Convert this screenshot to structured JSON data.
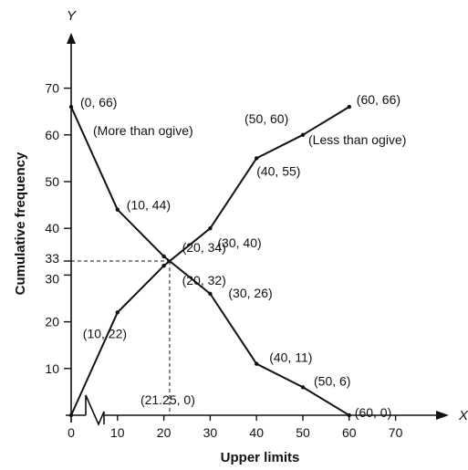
{
  "chart_data": {
    "type": "line",
    "xlabel": "Upper limits",
    "ylabel": "Cumulative frequency",
    "x_axis_name": "X",
    "y_axis_name": "Y",
    "xlim": [
      0,
      80
    ],
    "ylim": [
      0,
      78
    ],
    "x_ticks": [
      0,
      10,
      20,
      30,
      40,
      50,
      60,
      70
    ],
    "y_ticks": [
      10,
      20,
      30,
      33,
      40,
      50,
      60,
      70
    ],
    "grid": false,
    "series": [
      {
        "name": "More than ogive",
        "points": [
          {
            "x": 0,
            "y": 66,
            "label": "(0, 66)"
          },
          {
            "x": 10,
            "y": 44,
            "label": "(10, 44)"
          },
          {
            "x": 20,
            "y": 34,
            "label": "(20, 34)"
          },
          {
            "x": 30,
            "y": 26,
            "label": "(30, 26)"
          },
          {
            "x": 40,
            "y": 11,
            "label": "(40, 11)"
          },
          {
            "x": 50,
            "y": 6,
            "label": "(50, 6)"
          },
          {
            "x": 60,
            "y": 0,
            "label": "(60, 0)"
          }
        ]
      },
      {
        "name": "Less than ogive",
        "points": [
          {
            "x": 0,
            "y": 0,
            "label": ""
          },
          {
            "x": 10,
            "y": 22,
            "label": "(10, 22)"
          },
          {
            "x": 20,
            "y": 32,
            "label": "(20, 32)"
          },
          {
            "x": 30,
            "y": 40,
            "label": "(30, 40)"
          },
          {
            "x": 40,
            "y": 55,
            "label": "(40, 55)"
          },
          {
            "x": 50,
            "y": 60,
            "label": "(50, 60)"
          },
          {
            "x": 60,
            "y": 66,
            "label": "(60, 66)"
          }
        ]
      }
    ],
    "intersection": {
      "x": 21.25,
      "y": 33,
      "label": "(21.25, 0)"
    },
    "annotations": [
      "(More than ogive)",
      "(Less than ogive)"
    ]
  }
}
